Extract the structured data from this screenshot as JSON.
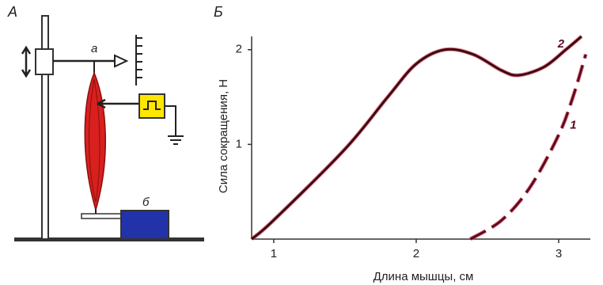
{
  "diagram": {
    "panel_label": "А",
    "lever_label": "а",
    "transducer_label": "б"
  },
  "chart_data": {
    "type": "line",
    "panel_label": "Б",
    "x_label": "Длина мышцы, см",
    "y_label": "Сила сокращения, Н",
    "xlim": [
      0.845,
      3.2
    ],
    "ylim": [
      0,
      2.14
    ],
    "xticks": [
      1,
      2,
      3
    ],
    "yticks": [
      1,
      2
    ],
    "series": [
      {
        "name": "2",
        "color": "#3a0a18",
        "dash": false,
        "x": [
          0.845,
          1.0,
          1.5,
          1.8,
          2.0,
          2.2,
          2.4,
          2.6,
          2.72,
          2.9,
          3.05,
          3.16
        ],
        "values": [
          0,
          0.2,
          0.95,
          1.5,
          1.85,
          2.0,
          1.95,
          1.78,
          1.73,
          1.82,
          2.0,
          2.14
        ]
      },
      {
        "name": "1",
        "color": "#5a0a22",
        "dash": true,
        "x": [
          2.38,
          2.6,
          2.8,
          3.0,
          3.1,
          3.19
        ],
        "values": [
          0,
          0.2,
          0.55,
          1.1,
          1.5,
          1.95
        ]
      }
    ]
  }
}
